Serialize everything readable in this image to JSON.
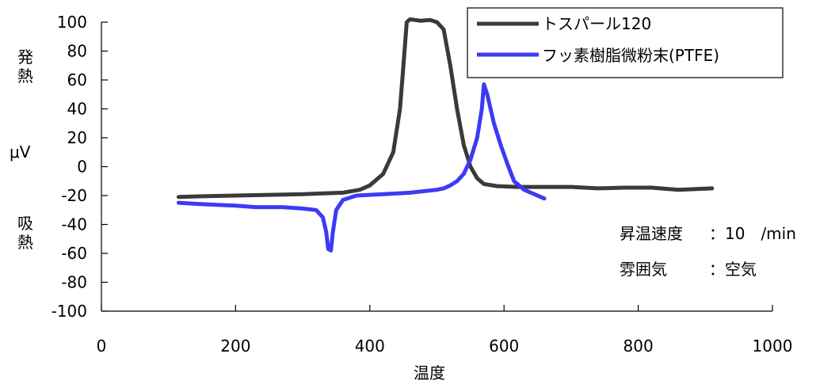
{
  "chart_data": {
    "type": "line",
    "xlabel": "温度",
    "ylabel_top": "発\n熱",
    "ylabel_unit": "μV",
    "ylabel_bottom": "吸\n熱",
    "xlim": [
      0,
      1000
    ],
    "ylim": [
      -100,
      100
    ],
    "xticks": [
      0,
      200,
      400,
      600,
      800,
      1000
    ],
    "yticks": [
      100,
      80,
      60,
      40,
      20,
      0,
      -20,
      -40,
      -60,
      -80,
      -100
    ],
    "grid": false,
    "legend_position": "top-right",
    "series": [
      {
        "name": "トスパール120",
        "color": "#3a3a3a",
        "points": [
          [
            115,
            -21
          ],
          [
            150,
            -20.5
          ],
          [
            200,
            -20
          ],
          [
            250,
            -19.5
          ],
          [
            300,
            -19
          ],
          [
            330,
            -18.5
          ],
          [
            360,
            -18
          ],
          [
            385,
            -16
          ],
          [
            400,
            -13
          ],
          [
            420,
            -5
          ],
          [
            435,
            10
          ],
          [
            445,
            40
          ],
          [
            450,
            70
          ],
          [
            455,
            100
          ],
          [
            460,
            102
          ],
          [
            475,
            101
          ],
          [
            490,
            101.5
          ],
          [
            500,
            100
          ],
          [
            510,
            95
          ],
          [
            520,
            70
          ],
          [
            530,
            40
          ],
          [
            540,
            15
          ],
          [
            550,
            0
          ],
          [
            560,
            -8
          ],
          [
            570,
            -12
          ],
          [
            590,
            -13.5
          ],
          [
            620,
            -14
          ],
          [
            660,
            -14
          ],
          [
            700,
            -14
          ],
          [
            740,
            -15
          ],
          [
            780,
            -14.5
          ],
          [
            820,
            -14.5
          ],
          [
            860,
            -16
          ],
          [
            910,
            -15
          ]
        ]
      },
      {
        "name": "フッ素樹脂微粉末(PTFE)",
        "color": "#3b3bf5",
        "points": [
          [
            115,
            -25
          ],
          [
            150,
            -26
          ],
          [
            200,
            -27
          ],
          [
            230,
            -28
          ],
          [
            270,
            -28
          ],
          [
            300,
            -29
          ],
          [
            320,
            -30
          ],
          [
            330,
            -35
          ],
          [
            335,
            -45
          ],
          [
            338,
            -57
          ],
          [
            342,
            -58
          ],
          [
            345,
            -45
          ],
          [
            350,
            -30
          ],
          [
            360,
            -23
          ],
          [
            380,
            -20
          ],
          [
            420,
            -19
          ],
          [
            460,
            -18
          ],
          [
            480,
            -17
          ],
          [
            500,
            -16
          ],
          [
            510,
            -15
          ],
          [
            520,
            -13
          ],
          [
            530,
            -10
          ],
          [
            540,
            -5
          ],
          [
            550,
            5
          ],
          [
            560,
            20
          ],
          [
            567,
            40
          ],
          [
            570,
            57
          ],
          [
            575,
            50
          ],
          [
            585,
            30
          ],
          [
            595,
            15
          ],
          [
            605,
            2
          ],
          [
            615,
            -10
          ],
          [
            630,
            -16
          ],
          [
            645,
            -19
          ],
          [
            660,
            -22
          ]
        ]
      }
    ],
    "annotations": [
      {
        "label": "昇温速度",
        "value": "：10　/min"
      },
      {
        "label": "雰囲気",
        "value": "：空気"
      }
    ]
  }
}
